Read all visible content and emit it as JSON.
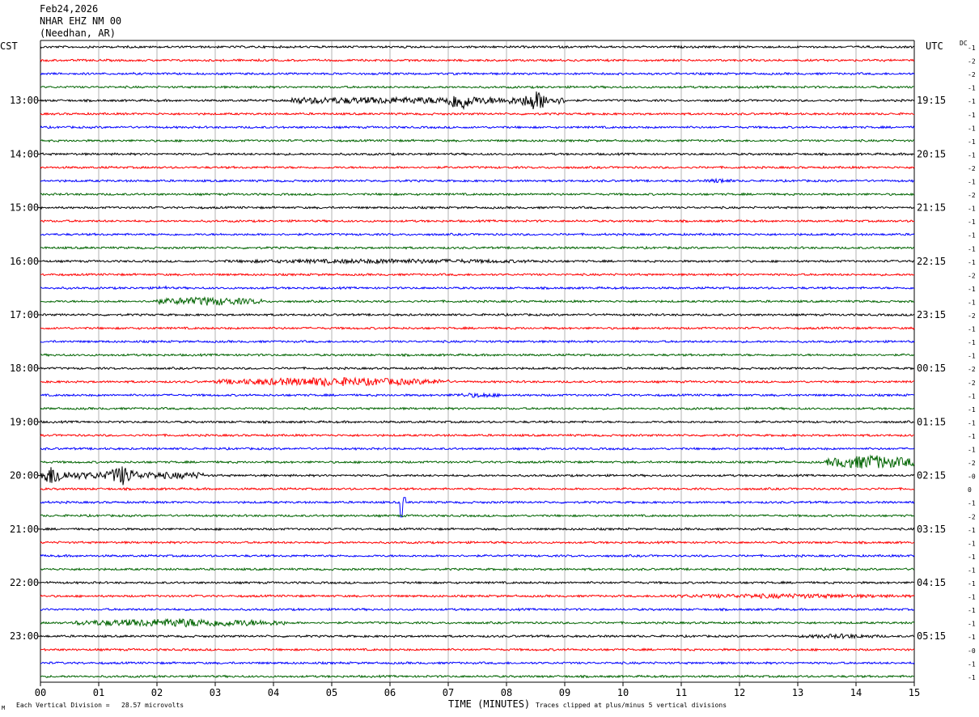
{
  "header": {
    "date": "Feb24,2026",
    "station": "NHAR EHZ NM 00",
    "location": "(Needhan, AR)"
  },
  "left_timezone": "CST",
  "right_timezone": "UTC",
  "dc_label": "DC",
  "footer": {
    "scale_note": "Each Vertical Division =   28.57 microvolts",
    "xlabel": "TIME (MINUTES)",
    "clip_note": "Traces clipped at plus/minus 5 vertical divisions",
    "corner_mark": "M"
  },
  "colors": {
    "trace_cycle": [
      "#000000",
      "#ff0000",
      "#0000ff",
      "#006400"
    ],
    "grid": "#808080"
  },
  "chart_data": {
    "type": "line",
    "title": "NHAR EHZ NM 00",
    "xlabel": "TIME (MINUTES)",
    "xlim": [
      0,
      15
    ],
    "x_ticks": [
      "00",
      "01",
      "02",
      "03",
      "04",
      "05",
      "06",
      "07",
      "08",
      "09",
      "10",
      "11",
      "12",
      "13",
      "14",
      "15"
    ],
    "trace_count": 48,
    "trace_minutes": 15,
    "left_hour_labels": [
      "13:00",
      "14:00",
      "15:00",
      "16:00",
      "17:00",
      "18:00",
      "19:00",
      "20:00",
      "21:00",
      "22:00",
      "23:00"
    ],
    "right_hour_labels": [
      "19:15",
      "20:15",
      "21:15",
      "22:15",
      "23:15",
      "00:15",
      "01:15",
      "02:15",
      "03:15",
      "04:15",
      "05:15"
    ],
    "left_label_trace_index": [
      4,
      8,
      12,
      16,
      20,
      24,
      28,
      32,
      36,
      40,
      44
    ],
    "dc_offsets": [
      "-1",
      "-2",
      "-2",
      "-1",
      "-1",
      "-1",
      "-1",
      "-1",
      "-1",
      "-2",
      "-1",
      "-2",
      "-1",
      "-1",
      "-1",
      "-1",
      "-1",
      "-2",
      "-1",
      "-1",
      "-2",
      "-1",
      "-1",
      "-1",
      "-2",
      "-2",
      "-1",
      "-1",
      "-1",
      "-1",
      "-1",
      "-2",
      "-0",
      "0",
      "-1",
      "-2",
      "-1",
      "-1",
      "-1",
      "-1",
      "-1",
      "-1",
      "-1",
      "-1",
      "-1",
      "-0",
      "-1",
      "-1"
    ],
    "events": [
      {
        "trace": 4,
        "start_min": 4.3,
        "end_min": 9.0,
        "amplitude": "large",
        "peaks_min": [
          7.2,
          8.5
        ]
      },
      {
        "trace": 10,
        "start_min": 11.4,
        "end_min": 11.9,
        "amplitude": "small"
      },
      {
        "trace": 16,
        "start_min": 3.0,
        "end_min": 9.0,
        "amplitude": "small"
      },
      {
        "trace": 18,
        "start_min": 2.0,
        "end_min": 2.2,
        "amplitude": "small"
      },
      {
        "trace": 19,
        "start_min": 1.9,
        "end_min": 3.8,
        "amplitude": "medium"
      },
      {
        "trace": 25,
        "start_min": 3.0,
        "end_min": 7.0,
        "amplitude": "medium"
      },
      {
        "trace": 26,
        "start_min": 7.0,
        "end_min": 8.0,
        "amplitude": "small"
      },
      {
        "trace": 31,
        "start_min": 13.5,
        "end_min": 15.0,
        "amplitude": "large"
      },
      {
        "trace": 32,
        "start_min": 0.0,
        "end_min": 2.8,
        "amplitude": "large",
        "peaks_min": [
          0.2,
          1.4
        ]
      },
      {
        "trace": 34,
        "start_min": 6.2,
        "end_min": 6.4,
        "amplitude": "spike"
      },
      {
        "trace": 41,
        "start_min": 10.5,
        "end_min": 15.0,
        "amplitude": "small"
      },
      {
        "trace": 43,
        "start_min": 0.6,
        "end_min": 4.2,
        "amplitude": "medium"
      },
      {
        "trace": 44,
        "start_min": 13.0,
        "end_min": 14.5,
        "amplitude": "small"
      }
    ]
  }
}
